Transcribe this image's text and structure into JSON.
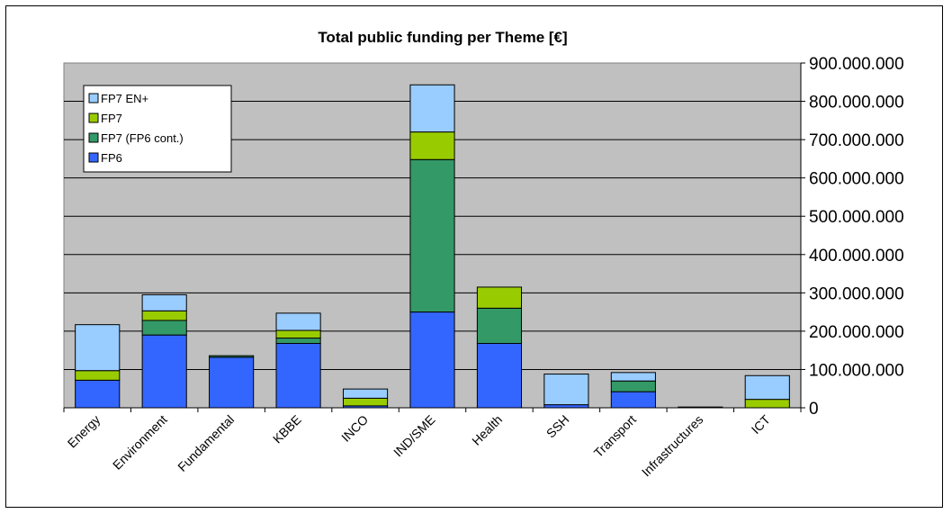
{
  "chart_data": {
    "type": "bar",
    "stacked": true,
    "title": "Total public funding per Theme [€]",
    "categories": [
      "Energy",
      "Environment",
      "Fundamental",
      "KBBE",
      "INCO",
      "IND/SME",
      "Health",
      "SSH",
      "Transport",
      "Infrastructures",
      "ICT"
    ],
    "series": [
      {
        "name": "FP6",
        "color": "#3366ff",
        "values": [
          72000000,
          190000000,
          132000000,
          168000000,
          5000000,
          250000000,
          168000000,
          8000000,
          42000000,
          2000000,
          0
        ]
      },
      {
        "name": "FP7 (FP6 cont.)",
        "color": "#339966",
        "values": [
          0,
          38000000,
          4000000,
          14000000,
          0,
          398000000,
          92000000,
          0,
          28000000,
          0,
          0
        ]
      },
      {
        "name": "FP7",
        "color": "#99cc00",
        "values": [
          25000000,
          25000000,
          0,
          20000000,
          20000000,
          72000000,
          55000000,
          0,
          0,
          0,
          22000000
        ]
      },
      {
        "name": "FP7 EN+",
        "color": "#99ccff",
        "values": [
          120000000,
          42000000,
          0,
          45000000,
          24000000,
          123000000,
          0,
          80000000,
          22000000,
          0,
          62000000
        ]
      }
    ],
    "ylim": [
      0,
      900000000
    ],
    "yticks": [
      "0",
      "100.000.000",
      "200.000.000",
      "300.000.000",
      "400.000.000",
      "500.000.000",
      "600.000.000",
      "700.000.000",
      "800.000.000",
      "900.000.000"
    ],
    "yaxis_position": "right",
    "grid": true,
    "legend_position": "top-left",
    "plot_background": "#c0c0c0"
  }
}
